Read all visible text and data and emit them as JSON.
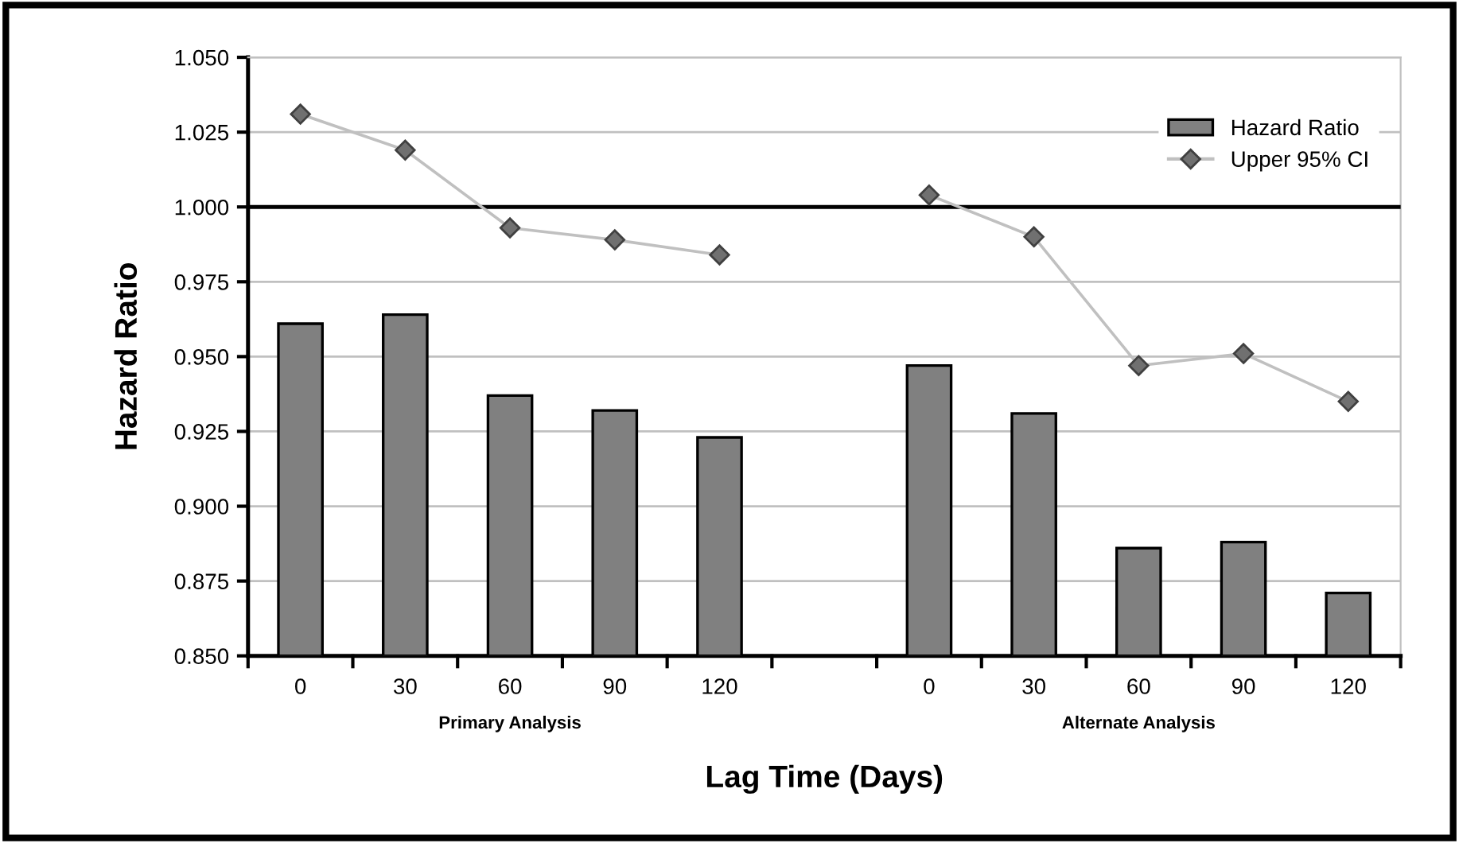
{
  "chart_data": {
    "type": "bar",
    "xlabel": "Lag Time (Days)",
    "ylabel": "Hazard Ratio",
    "categories": [
      "0",
      "30",
      "60",
      "90",
      "120",
      null,
      "0",
      "30",
      "60",
      "90",
      "120"
    ],
    "series": [
      {
        "name": "Hazard Ratio",
        "color": "#808080",
        "values": [
          0.961,
          0.964,
          0.937,
          0.932,
          0.923,
          null,
          0.947,
          0.931,
          0.886,
          0.888,
          0.871
        ]
      },
      {
        "name": "Upper 95% CI",
        "type": "line",
        "color": "#c0c0c0",
        "marker": "diamond",
        "values": [
          1.031,
          1.019,
          0.993,
          0.989,
          0.984,
          null,
          1.004,
          0.99,
          0.947,
          0.951,
          0.935
        ]
      }
    ],
    "ylim": [
      0.85,
      1.05
    ],
    "yticks": [
      {
        "value": 0.85,
        "label": "0.850"
      },
      {
        "value": 0.875,
        "label": "0.875"
      },
      {
        "value": 0.9,
        "label": "0.900"
      },
      {
        "value": 0.925,
        "label": "0.925"
      },
      {
        "value": 0.95,
        "label": "0.950"
      },
      {
        "value": 0.975,
        "label": "0.975"
      },
      {
        "value": 1.0,
        "label": "1.000"
      },
      {
        "value": 1.025,
        "label": "1.025"
      },
      {
        "value": 1.05,
        "label": "1.050"
      }
    ],
    "ref_lines": [
      {
        "axis": "y",
        "value": 1.0,
        "color": "#000000"
      }
    ],
    "annotations": [
      "Primary Analysis",
      "Alternate Analysis"
    ],
    "grid": "y",
    "legend": "top right"
  }
}
